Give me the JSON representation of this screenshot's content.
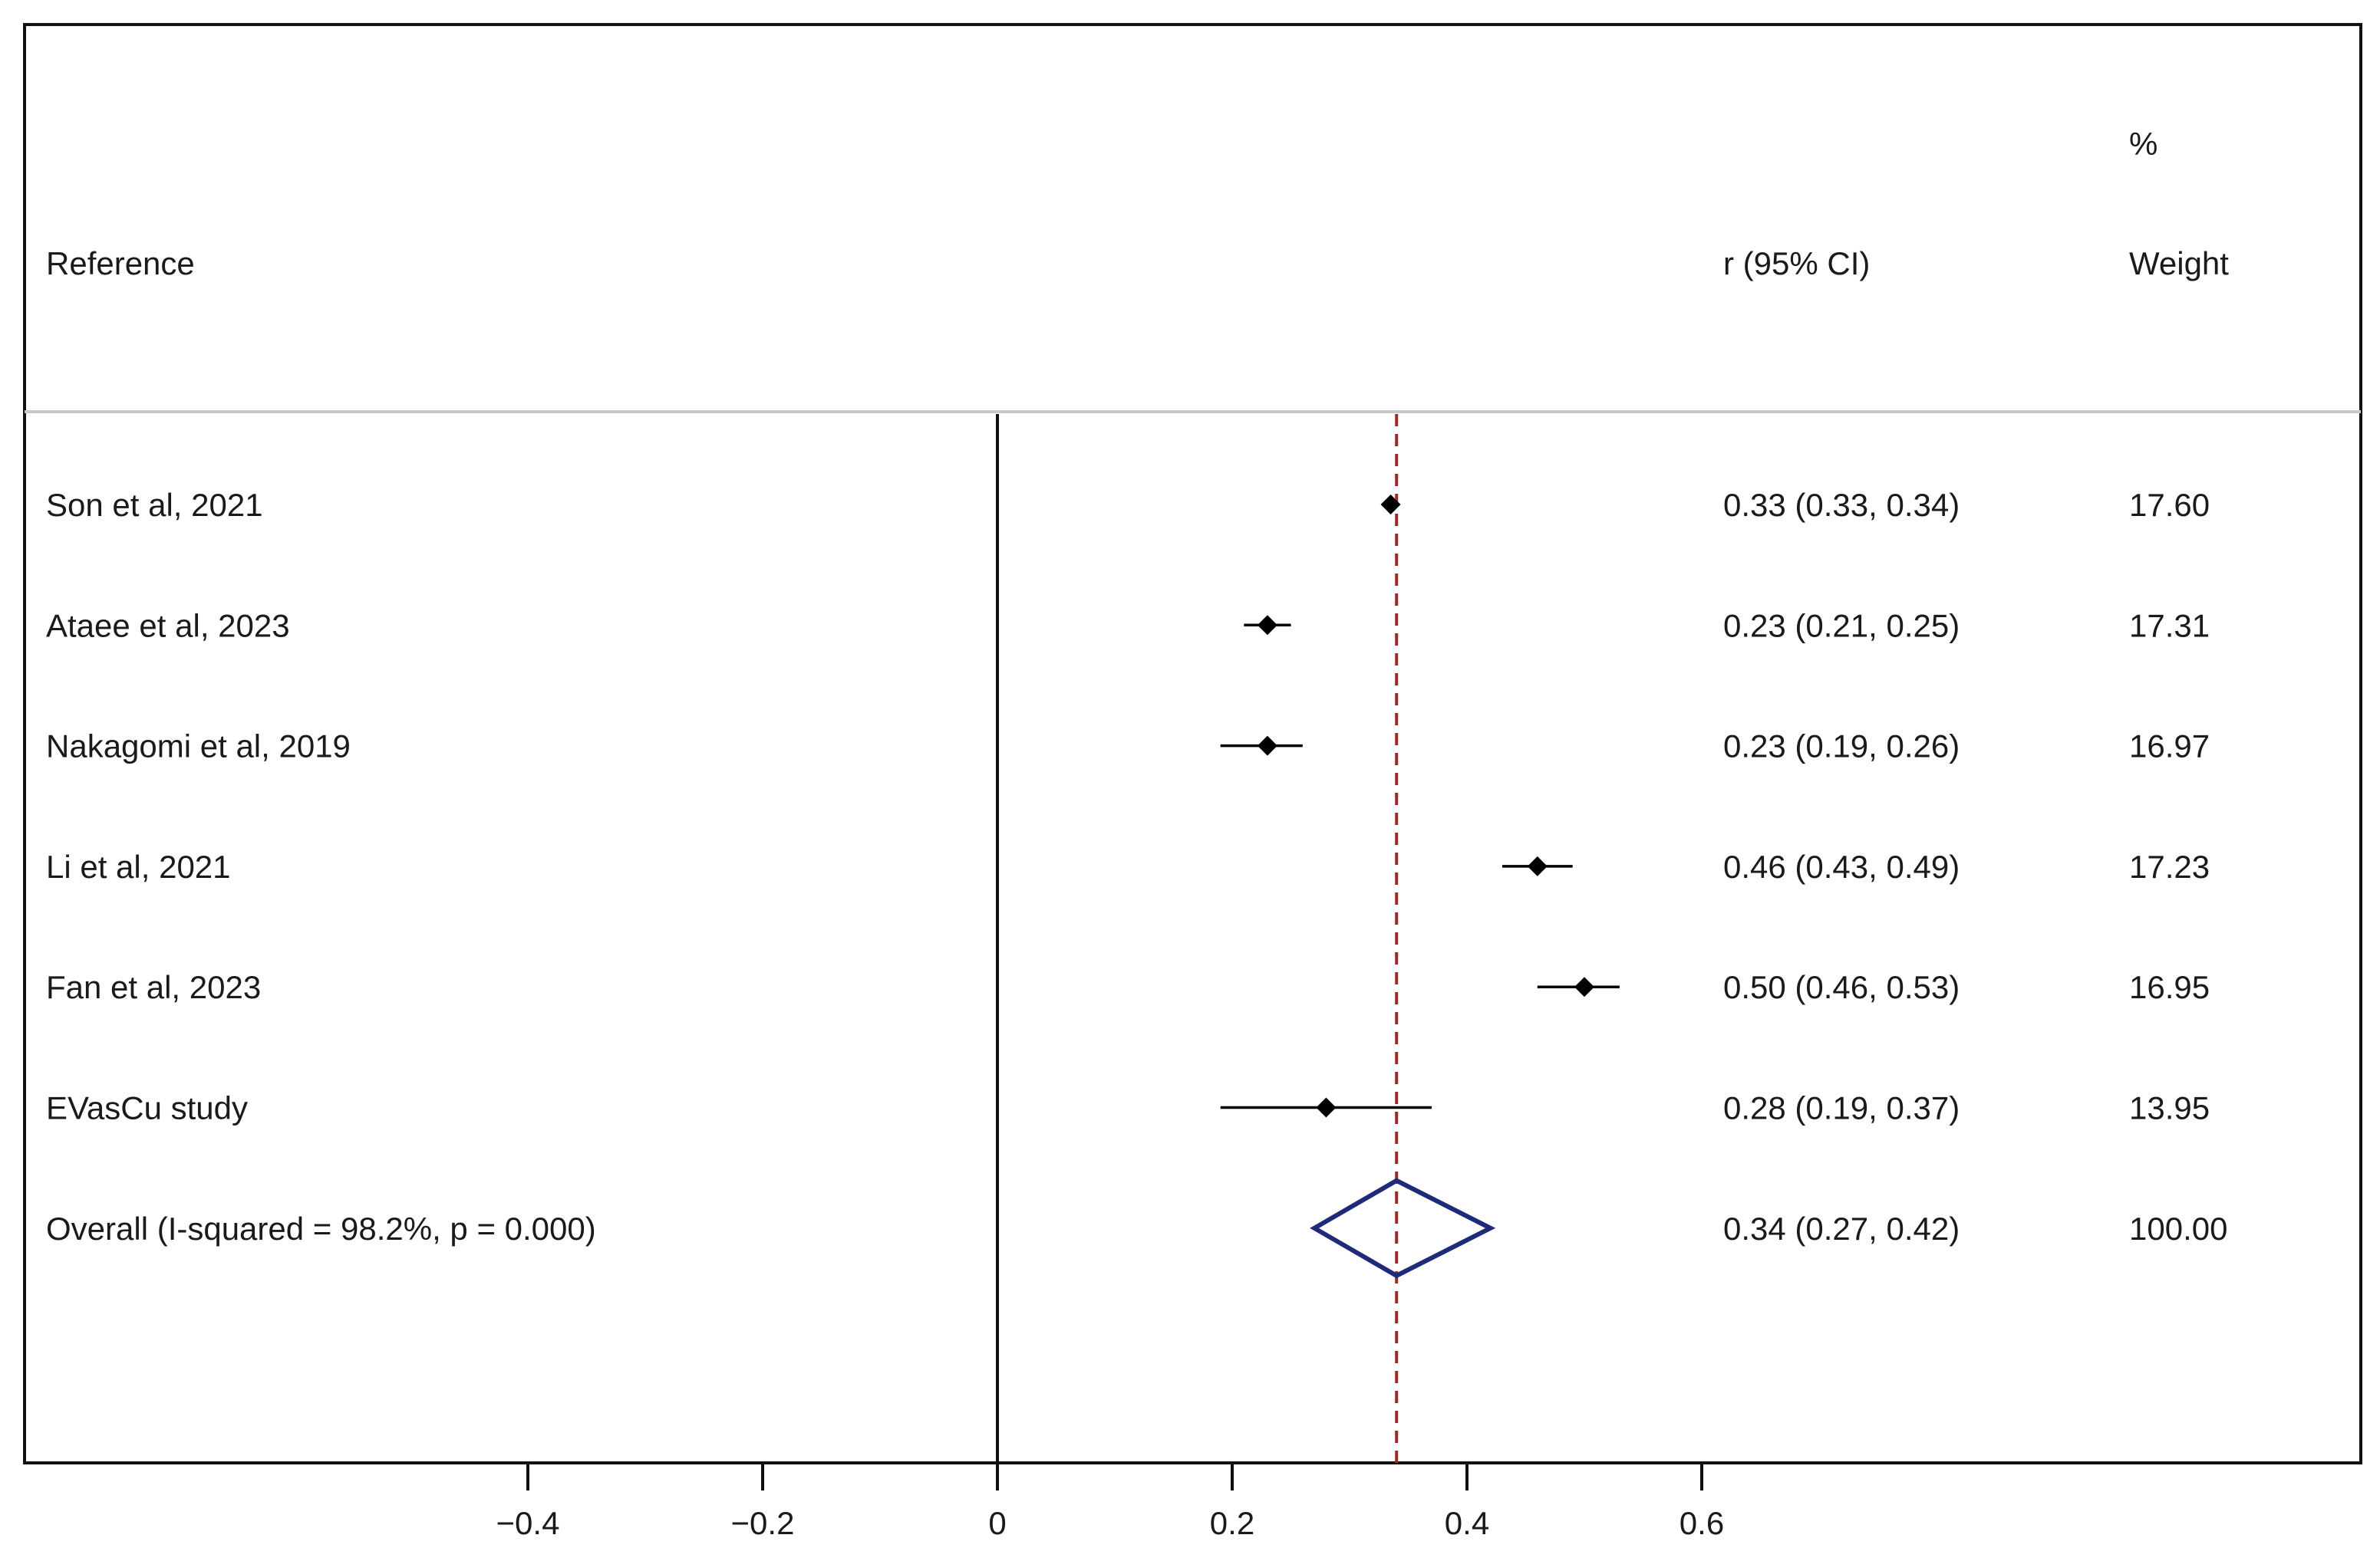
{
  "header": {
    "reference_label": "Reference",
    "effect_label": "r (95% CI)",
    "weight_label_line1": "%",
    "weight_label_line2": "Weight"
  },
  "chart_data": {
    "type": "forest",
    "x_ticks": [
      -0.4,
      -0.2,
      0,
      0.2,
      0.4,
      0.6
    ],
    "x_tick_labels": [
      "−0.4",
      "−0.2",
      "0",
      "0.2",
      "0.4",
      "0.6"
    ],
    "null_line": 0,
    "pooled_line": 0.34,
    "studies": [
      {
        "label": "Son et al, 2021",
        "r": 0.335,
        "lo": 0.33,
        "hi": 0.34,
        "ci_text": "0.33 (0.33, 0.34)",
        "weight": "17.60"
      },
      {
        "label": "Ataee et al, 2023",
        "r": 0.23,
        "lo": 0.21,
        "hi": 0.25,
        "ci_text": "0.23 (0.21, 0.25)",
        "weight": "17.31"
      },
      {
        "label": "Nakagomi et al, 2019",
        "r": 0.23,
        "lo": 0.19,
        "hi": 0.26,
        "ci_text": "0.23 (0.19, 0.26)",
        "weight": "16.97"
      },
      {
        "label": "Li et al, 2021",
        "r": 0.46,
        "lo": 0.43,
        "hi": 0.49,
        "ci_text": "0.46 (0.43, 0.49)",
        "weight": "17.23"
      },
      {
        "label": "Fan et al, 2023",
        "r": 0.5,
        "lo": 0.46,
        "hi": 0.53,
        "ci_text": "0.50 (0.46, 0.53)",
        "weight": "16.95"
      },
      {
        "label": "EVasCu study",
        "r": 0.28,
        "lo": 0.19,
        "hi": 0.37,
        "ci_text": "0.28 (0.19, 0.37)",
        "weight": "13.95"
      }
    ],
    "overall": {
      "label": "Overall  (I-squared = 98.2%, p = 0.000)",
      "r": 0.34,
      "lo": 0.27,
      "hi": 0.42,
      "ci_text": "0.34 (0.27, 0.42)",
      "weight": "100.00"
    },
    "colors": {
      "pooled_line": "#9b2b2b",
      "diamond": "#1f2a78",
      "markers": "#000000",
      "header_rule": "#c8c8c8"
    }
  }
}
